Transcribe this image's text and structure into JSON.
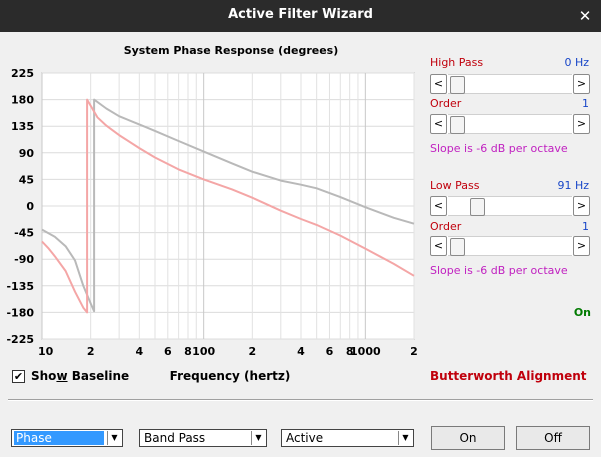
{
  "window": {
    "title": "Active Filter Wizard",
    "close_glyph": "✕"
  },
  "chart_data": {
    "type": "line",
    "title": "System Phase Response (degrees)",
    "xlabel": "Frequency (hertz)",
    "ylabel": "",
    "x_scale": "log",
    "xlim": [
      10,
      2000
    ],
    "ylim": [
      -225,
      225
    ],
    "grid": true,
    "y_ticks": [
      "225",
      "180",
      "135",
      "90",
      "45",
      "0",
      "-45",
      "-90",
      "-135",
      "-180",
      "-225"
    ],
    "x_ticks": [
      "10",
      "2",
      "4",
      "6",
      "8",
      "100",
      "2",
      "4",
      "6",
      "8",
      "1000",
      "2"
    ],
    "series": [
      {
        "color": "#b9b9b9",
        "points": [
          [
            10,
            -40
          ],
          [
            12,
            -52
          ],
          [
            14,
            -68
          ],
          [
            16,
            -92
          ],
          [
            18,
            -135
          ],
          [
            20,
            -165
          ],
          [
            21,
            -178
          ],
          [
            21.001,
            180
          ],
          [
            25,
            165
          ],
          [
            30,
            152
          ],
          [
            40,
            138
          ],
          [
            50,
            127
          ],
          [
            70,
            110
          ],
          [
            100,
            92
          ],
          [
            150,
            72
          ],
          [
            200,
            58
          ],
          [
            300,
            43
          ],
          [
            400,
            36
          ],
          [
            500,
            30
          ],
          [
            700,
            15
          ],
          [
            1000,
            -2
          ],
          [
            1500,
            -20
          ],
          [
            2000,
            -30
          ]
        ]
      },
      {
        "color": "#f4a6a6",
        "points": [
          [
            10,
            -60
          ],
          [
            11,
            -72
          ],
          [
            12,
            -85
          ],
          [
            14,
            -110
          ],
          [
            16,
            -145
          ],
          [
            18,
            -172
          ],
          [
            19,
            -180
          ],
          [
            19.001,
            180
          ],
          [
            22,
            150
          ],
          [
            25,
            136
          ],
          [
            30,
            120
          ],
          [
            40,
            98
          ],
          [
            50,
            82
          ],
          [
            70,
            62
          ],
          [
            100,
            45
          ],
          [
            150,
            28
          ],
          [
            200,
            14
          ],
          [
            300,
            -8
          ],
          [
            400,
            -22
          ],
          [
            500,
            -32
          ],
          [
            700,
            -50
          ],
          [
            1000,
            -72
          ],
          [
            1500,
            -98
          ],
          [
            2000,
            -118
          ]
        ]
      }
    ]
  },
  "high_pass": {
    "label": "High Pass",
    "value": "0 Hz",
    "order_label": "Order",
    "order_value": "1",
    "slope": "Slope is -6 dB per octave",
    "slider_level": 0.02,
    "order_level": 0.02
  },
  "low_pass": {
    "label": "Low Pass",
    "value": "91 Hz",
    "order_label": "Order",
    "order_value": "1",
    "slope": "Slope is -6 dB per octave",
    "slider_level": 0.2,
    "order_level": 0.02
  },
  "status": "On",
  "show_baseline": {
    "label": "Show Baseline",
    "checked": true,
    "mark": "✔"
  },
  "alignment": "Butterworth Alignment",
  "selects": {
    "view": "Phase",
    "filter_type": "Band Pass",
    "mode": "Active",
    "drop_glyph": "▼"
  },
  "buttons": {
    "on": "On",
    "off": "Off"
  },
  "arrows": {
    "left": "<",
    "right": ">"
  },
  "colors": {
    "accent_red": "#c0000c",
    "value_blue": "#1846c8",
    "slope_magenta": "#c020c0",
    "status_green": "#007a00"
  }
}
